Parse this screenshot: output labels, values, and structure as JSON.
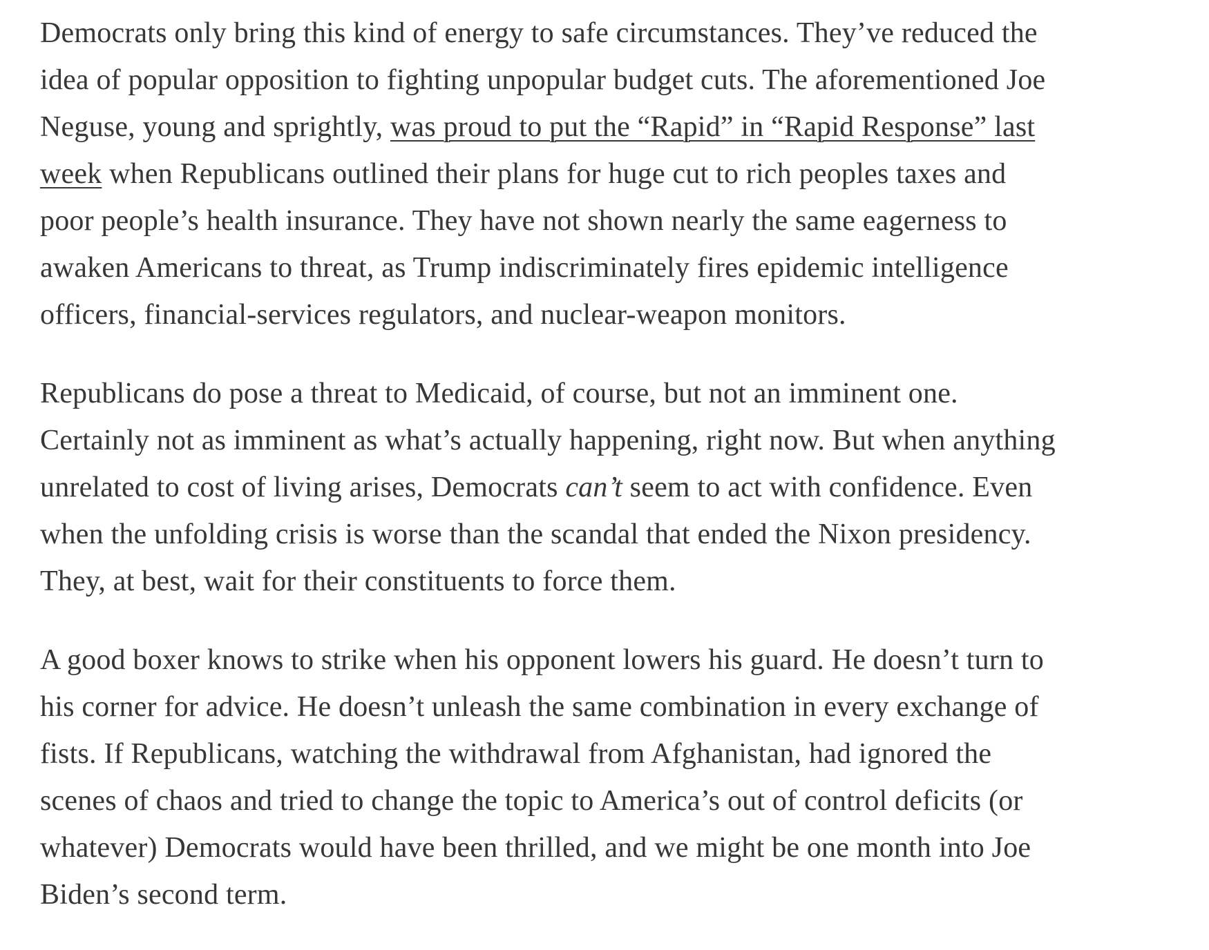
{
  "article": {
    "paragraphs": [
      {
        "lines": [
          "Democrats only bring this kind of energy to safe circumstances. They’ve reduced the",
          "idea of popular opposition to fighting unpopular budget cuts. The aforementioned Joe"
        ],
        "line3_prefix": "Neguse, young and sprightly, ",
        "link_line3": "was proud to put the “Rapid” in “Rapid Response” last",
        "link_line4": "week",
        "line4_suffix": " when Republicans outlined their plans for huge cut to rich peoples taxes and",
        "lines_after": [
          "poor people’s health insurance. They have not shown nearly the same eagerness to",
          "awaken Americans to threat, as Trump indiscriminately fires epidemic intelligence",
          "officers, financial-services regulators, and nuclear-weapon monitors."
        ]
      },
      {
        "lines": [
          "Republicans do pose a threat to Medicaid, of course, but not an imminent one.",
          "Certainly not as imminent as what’s actually happening, right now. But when anything"
        ],
        "line3_prefix": "unrelated to cost of living arises, Democrats ",
        "line3_emphasis": "can’t",
        "line3_suffix": " seem to act with confidence. Even",
        "lines_after": [
          "when the unfolding crisis is worse than the scandal that ended the Nixon presidency.",
          "They, at best, wait for their constituents to force them."
        ]
      },
      {
        "lines": [
          "A good boxer knows to strike when his opponent lowers his guard. He doesn’t turn to",
          "his corner for advice. He doesn’t unleash the same combination in every exchange of",
          "fists. If Republicans, watching the withdrawal from Afghanistan, had ignored the",
          "scenes of chaos and tried to change the topic to America’s out of control deficits (or",
          "whatever) Democrats would have been thrilled, and we might be one month into Joe",
          "Biden’s second term."
        ]
      }
    ]
  },
  "colors": {
    "text": "#363737",
    "background": "#ffffff"
  }
}
